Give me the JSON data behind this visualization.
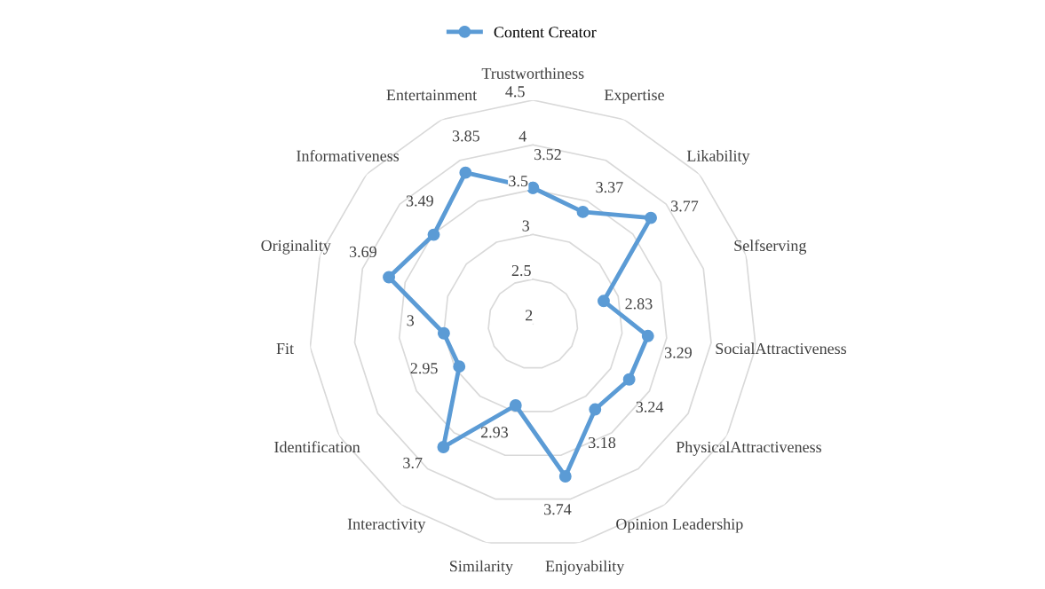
{
  "chart_data": {
    "type": "radar",
    "categories": [
      "Trustworthiness",
      "Expertise",
      "Likability",
      "Selfserving",
      "SocialAttractiveness",
      "PhysicalAttractiveness",
      "Opinion Leadership",
      "Enjoyability",
      "Similarity",
      "Interactivity",
      "Identification",
      "Fit",
      "Originality",
      "Informativeness",
      "Entertainment"
    ],
    "series": [
      {
        "name": "Content Creator",
        "color": "#5b9bd5",
        "values": [
          3.52,
          3.37,
          3.77,
          2.83,
          3.29,
          3.24,
          3.18,
          3.74,
          2.93,
          3.7,
          2.95,
          3,
          3.69,
          3.49,
          3.85
        ]
      }
    ],
    "ylim": [
      2,
      4.5
    ],
    "yticks": [
      2,
      2.5,
      3,
      3.5,
      4,
      4.5
    ],
    "grid": true,
    "legend": "top",
    "marker": "circle",
    "line_style": "solid",
    "data_labels": true
  }
}
